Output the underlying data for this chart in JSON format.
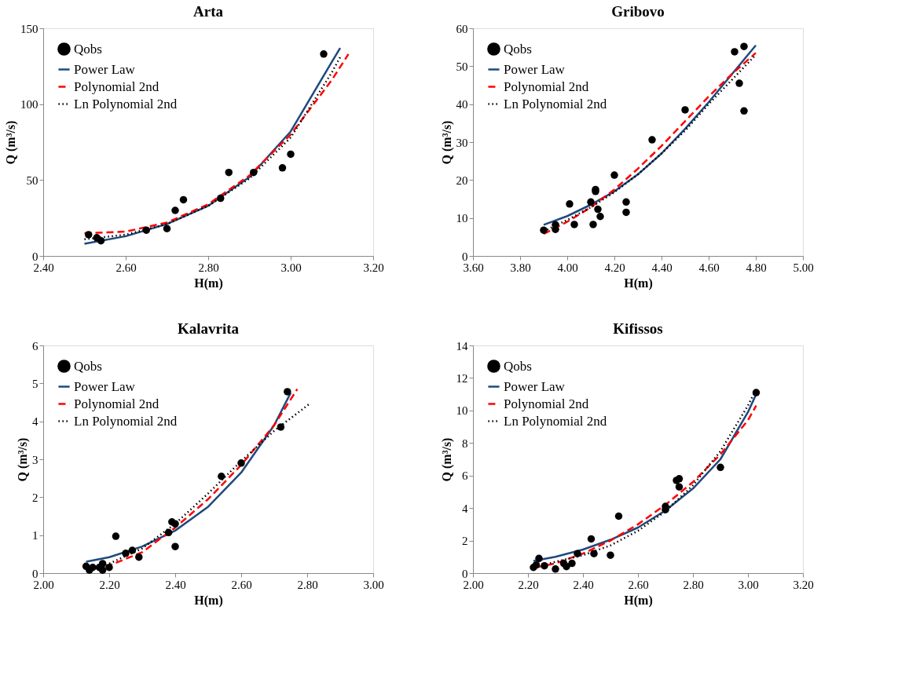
{
  "chart_data": [
    {
      "type": "scatter",
      "title": "Arta",
      "xlabel": "H(m)",
      "ylabel": "Q (m³/s)",
      "legend": "top left",
      "xlim": [
        2.4,
        3.2
      ],
      "xticks": [
        {
          "value": 2.4,
          "label": "2.40"
        },
        {
          "value": 2.6,
          "label": "2.60"
        },
        {
          "value": 2.8,
          "label": "2.80"
        },
        {
          "value": 3.0,
          "label": "3.00"
        },
        {
          "value": 3.2,
          "label": "3.20"
        }
      ],
      "ylim": [
        0,
        150
      ],
      "yticks": [
        0,
        50,
        100,
        150
      ],
      "series": [
        {
          "name": "Qobs",
          "marker": "circle",
          "color": "#000000",
          "x": [
            2.51,
            2.53,
            2.54,
            2.65,
            2.7,
            2.72,
            2.74,
            2.83,
            2.85,
            2.91,
            2.98,
            3.0,
            3.08
          ],
          "values": [
            14,
            12,
            10,
            17,
            18,
            30,
            37,
            38,
            55,
            55,
            58,
            67,
            133
          ]
        },
        {
          "name": "Power Law",
          "type": "line",
          "line_style": "solid",
          "color": "#1f497d",
          "x": [
            2.5,
            2.6,
            2.7,
            2.8,
            2.9,
            3.0,
            3.1,
            3.12
          ],
          "values": [
            8,
            13,
            21,
            33,
            52,
            82,
            128,
            137
          ]
        },
        {
          "name": "Polynomial 2nd",
          "type": "line",
          "line_style": "dashed",
          "color": "#ff0000",
          "x": [
            2.5,
            2.6,
            2.7,
            2.8,
            2.9,
            3.0,
            3.1,
            3.14
          ],
          "values": [
            15,
            16,
            22,
            34,
            53,
            80,
            116,
            133
          ]
        },
        {
          "name": "Ln Polynomial 2nd",
          "type": "line",
          "line_style": "dotted",
          "color": "#000000",
          "x": [
            2.5,
            2.6,
            2.7,
            2.8,
            2.9,
            3.0,
            3.1,
            3.12
          ],
          "values": [
            11,
            14,
            21,
            33,
            51,
            78,
            121,
            131
          ]
        }
      ]
    },
    {
      "type": "scatter",
      "title": "Gribovo",
      "xlabel": "H(m)",
      "ylabel": "Q (m³/s)",
      "legend": "top left",
      "xlim": [
        3.6,
        5.0
      ],
      "xticks": [
        {
          "value": 3.6,
          "label": "3.60"
        },
        {
          "value": 3.8,
          "label": "3.80"
        },
        {
          "value": 4.0,
          "label": "4.00"
        },
        {
          "value": 4.2,
          "label": "4.20"
        },
        {
          "value": 4.4,
          "label": "4.40"
        },
        {
          "value": 4.6,
          "label": "4.60"
        },
        {
          "value": 4.8,
          "label": "4.80"
        },
        {
          "value": 5.0,
          "label": "5.00"
        }
      ],
      "ylim": [
        0,
        60
      ],
      "yticks": [
        0,
        10,
        20,
        30,
        40,
        50,
        60
      ],
      "series": [
        {
          "name": "Qobs",
          "marker": "circle",
          "color": "#000000",
          "x": [
            3.9,
            3.95,
            3.95,
            4.01,
            4.03,
            4.1,
            4.11,
            4.12,
            4.12,
            4.13,
            4.14,
            4.2,
            4.25,
            4.25,
            4.36,
            4.5,
            4.71,
            4.73,
            4.75,
            4.75
          ],
          "values": [
            6.8,
            7,
            8.2,
            13.7,
            8.3,
            14.2,
            8.3,
            17,
            17.5,
            12.3,
            10.4,
            21.3,
            14.2,
            11.5,
            30.6,
            38.5,
            53.8,
            45.5,
            38.2,
            55.2
          ]
        },
        {
          "name": "Power Law",
          "type": "line",
          "line_style": "solid",
          "color": "#1f497d",
          "x": [
            3.9,
            4.0,
            4.1,
            4.2,
            4.3,
            4.4,
            4.5,
            4.6,
            4.7,
            4.8
          ],
          "values": [
            8.2,
            10.5,
            13.5,
            17,
            21.5,
            27,
            33.5,
            40.5,
            48,
            55.5
          ]
        },
        {
          "name": "Polynomial 2nd",
          "type": "line",
          "line_style": "dashed",
          "color": "#ff0000",
          "x": [
            3.9,
            4.0,
            4.1,
            4.2,
            4.3,
            4.4,
            4.5,
            4.6,
            4.7,
            4.8
          ],
          "values": [
            5.8,
            9,
            12.8,
            17.5,
            23,
            29,
            35.5,
            42,
            48,
            53.5
          ]
        },
        {
          "name": "Ln Polynomial 2nd",
          "type": "line",
          "line_style": "dotted",
          "color": "#000000",
          "x": [
            3.9,
            4.0,
            4.1,
            4.2,
            4.3,
            4.4,
            4.5,
            4.6,
            4.7,
            4.8
          ],
          "values": [
            6.5,
            9.5,
            12.8,
            16.8,
            21.5,
            27,
            33,
            40,
            46.5,
            53
          ]
        }
      ]
    },
    {
      "type": "scatter",
      "title": "Kalavrita",
      "xlabel": "H(m)",
      "ylabel": "Q (m³/s)",
      "legend": "top left",
      "xlim": [
        2.0,
        3.0
      ],
      "xticks": [
        {
          "value": 2.0,
          "label": "2.00"
        },
        {
          "value": 2.2,
          "label": "2.20"
        },
        {
          "value": 2.4,
          "label": "2.40"
        },
        {
          "value": 2.6,
          "label": "2.60"
        },
        {
          "value": 2.8,
          "label": "2.80"
        },
        {
          "value": 3.0,
          "label": "3.00"
        }
      ],
      "ylim": [
        0,
        6
      ],
      "yticks": [
        0,
        1,
        2,
        3,
        4,
        5,
        6
      ],
      "series": [
        {
          "name": "Qobs",
          "marker": "circle",
          "color": "#000000",
          "x": [
            2.13,
            2.14,
            2.15,
            2.17,
            2.18,
            2.18,
            2.2,
            2.22,
            2.25,
            2.27,
            2.29,
            2.38,
            2.39,
            2.4,
            2.4,
            2.54,
            2.6,
            2.72,
            2.74
          ],
          "values": [
            0.18,
            0.08,
            0.15,
            0.15,
            0.25,
            0.08,
            0.15,
            0.97,
            0.52,
            0.6,
            0.42,
            1.07,
            1.35,
            1.3,
            0.7,
            2.55,
            2.9,
            3.85,
            4.78
          ]
        },
        {
          "name": "Power Law",
          "type": "line",
          "line_style": "solid",
          "color": "#1f497d",
          "x": [
            2.13,
            2.2,
            2.3,
            2.4,
            2.5,
            2.6,
            2.7,
            2.75
          ],
          "values": [
            0.3,
            0.42,
            0.7,
            1.12,
            1.75,
            2.65,
            3.9,
            4.75
          ]
        },
        {
          "name": "Polynomial 2nd",
          "type": "line",
          "line_style": "dashed",
          "color": "#ff0000",
          "x": [
            2.19,
            2.2,
            2.3,
            2.4,
            2.5,
            2.6,
            2.7,
            2.77
          ],
          "values": [
            0.15,
            0.2,
            0.55,
            1.2,
            1.95,
            2.85,
            3.9,
            4.85
          ]
        },
        {
          "name": "Ln Polynomial 2nd",
          "type": "line",
          "line_style": "dotted",
          "color": "#000000",
          "x": [
            2.19,
            2.2,
            2.3,
            2.4,
            2.5,
            2.6,
            2.7,
            2.81
          ],
          "values": [
            0.2,
            0.25,
            0.65,
            1.3,
            2.1,
            2.95,
            3.75,
            4.48
          ]
        }
      ]
    },
    {
      "type": "scatter",
      "title": "Kifissos",
      "xlabel": "H(m)",
      "ylabel": "Q (m³/s)",
      "legend": "top left",
      "xlim": [
        2.0,
        3.2
      ],
      "xticks": [
        {
          "value": 2.0,
          "label": "2.00"
        },
        {
          "value": 2.2,
          "label": "2.20"
        },
        {
          "value": 2.4,
          "label": "2.40"
        },
        {
          "value": 2.6,
          "label": "2.60"
        },
        {
          "value": 2.8,
          "label": "2.80"
        },
        {
          "value": 3.0,
          "label": "3.00"
        },
        {
          "value": 3.2,
          "label": "3.20"
        }
      ],
      "ylim": [
        0,
        14
      ],
      "yticks": [
        0,
        2,
        4,
        6,
        8,
        10,
        12,
        14
      ],
      "series": [
        {
          "name": "Qobs",
          "marker": "circle",
          "color": "#000000",
          "x": [
            2.22,
            2.23,
            2.24,
            2.26,
            2.3,
            2.33,
            2.34,
            2.36,
            2.38,
            2.43,
            2.44,
            2.5,
            2.53,
            2.7,
            2.7,
            2.74,
            2.75,
            2.75,
            2.9,
            3.03
          ],
          "values": [
            0.35,
            0.5,
            0.9,
            0.45,
            0.25,
            0.6,
            0.4,
            0.6,
            1.2,
            2.1,
            1.2,
            1.1,
            3.5,
            3.9,
            4.1,
            5.7,
            5.8,
            5.3,
            6.5,
            11.1
          ]
        },
        {
          "name": "Power Law",
          "type": "line",
          "line_style": "solid",
          "color": "#1f497d",
          "x": [
            2.22,
            2.3,
            2.4,
            2.5,
            2.6,
            2.7,
            2.8,
            2.9,
            3.0,
            3.03
          ],
          "values": [
            0.75,
            1.0,
            1.45,
            2.05,
            2.8,
            3.85,
            5.2,
            7.0,
            9.9,
            11.0
          ]
        },
        {
          "name": "Polynomial 2nd",
          "type": "line",
          "line_style": "dashed",
          "color": "#ff0000",
          "x": [
            2.23,
            2.3,
            2.4,
            2.5,
            2.6,
            2.7,
            2.8,
            2.9,
            3.0,
            3.03
          ],
          "values": [
            0.35,
            0.6,
            1.2,
            2.0,
            3.0,
            4.2,
            5.6,
            7.3,
            9.4,
            10.3
          ]
        },
        {
          "name": "Ln Polynomial 2nd",
          "type": "line",
          "line_style": "dotted",
          "color": "#000000",
          "x": [
            2.28,
            2.3,
            2.4,
            2.5,
            2.6,
            2.7,
            2.8,
            2.9,
            3.0,
            3.03
          ],
          "values": [
            0.6,
            0.7,
            1.1,
            1.7,
            2.6,
            3.8,
            5.4,
            7.5,
            10.3,
            11.3
          ]
        }
      ]
    }
  ]
}
